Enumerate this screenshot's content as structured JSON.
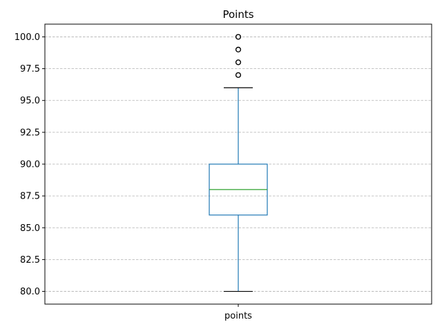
{
  "chart_data": {
    "type": "box",
    "title": "Points",
    "xlabel": "",
    "ylabel": "",
    "categories": [
      "points"
    ],
    "boxes": [
      {
        "label": "points",
        "whisker_low": 80.0,
        "q1": 86.0,
        "median": 88.0,
        "q3": 90.0,
        "whisker_high": 96.0,
        "outliers": [
          97,
          98,
          99,
          100
        ]
      }
    ],
    "ylim": [
      79.0,
      101.0
    ],
    "yticks": [
      80.0,
      82.5,
      85.0,
      87.5,
      90.0,
      92.5,
      95.0,
      97.5,
      100.0
    ],
    "ytick_labels": [
      "80.0",
      "82.5",
      "85.0",
      "87.5",
      "90.0",
      "92.5",
      "95.0",
      "97.5",
      "100.0"
    ],
    "grid": "y-dashed",
    "colors": {
      "box": "#1f77b4",
      "median": "#2ca02c",
      "caps": "#000000",
      "outliers": "#000000",
      "grid": "#b0b0b0"
    }
  }
}
